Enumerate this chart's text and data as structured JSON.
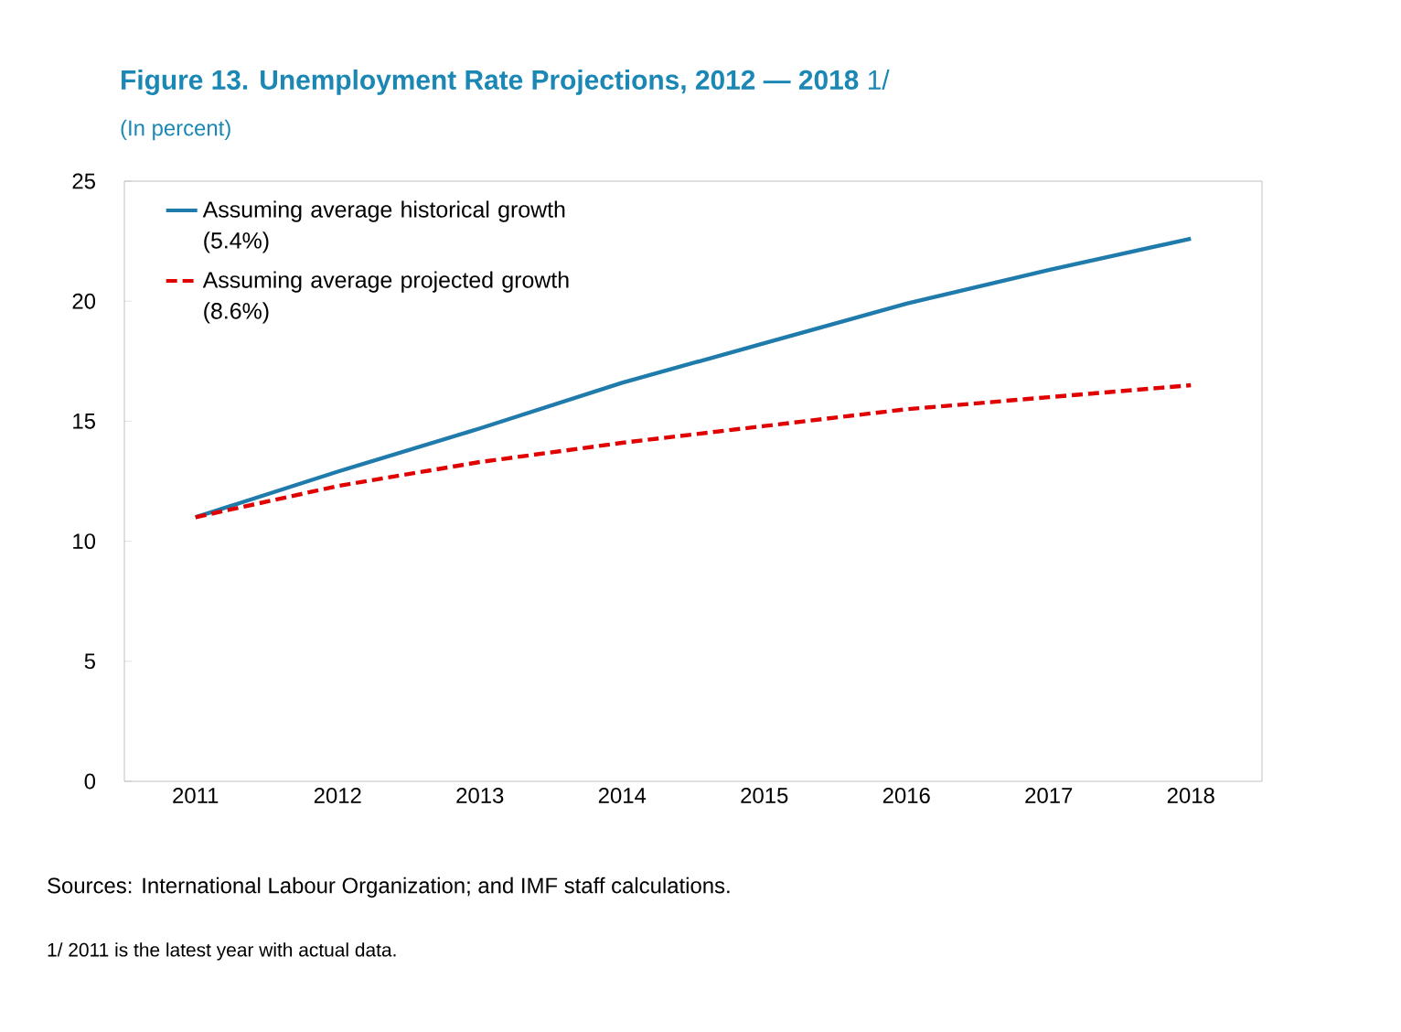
{
  "chart_data": {
    "type": "line",
    "title": "**Figure 13. Unemployment Rate Projections, 2012 — 2018** 1/",
    "subtitle": "(In percent)",
    "categories": [
      "2011",
      "2012",
      "2013",
      "2014",
      "2015",
      "2016",
      "2017",
      "2018"
    ],
    "series": [
      {
        "name": "Assuming average historical growth (5.4%)",
        "color": "#1f7bab",
        "line_style": "solid",
        "values": [
          11.0,
          12.9,
          14.7,
          16.6,
          18.25,
          19.9,
          21.3,
          22.6
        ]
      },
      {
        "name": "Assuming average projected growth (8.6%)",
        "color": "#e00000",
        "line_style": "dashed",
        "values": [
          11.0,
          12.3,
          13.3,
          14.1,
          14.8,
          15.5,
          16.0,
          16.5
        ]
      }
    ],
    "ylim": [
      0,
      25
    ],
    "yticks": [
      0,
      5,
      10,
      15,
      20,
      25
    ],
    "grid": false,
    "legend": "top left",
    "marker": "none",
    "annotations": [
      "Sources: International Labour Organization; and IMF staff calculations.",
      "1/ 2011 is the latest year with actual data."
    ]
  }
}
